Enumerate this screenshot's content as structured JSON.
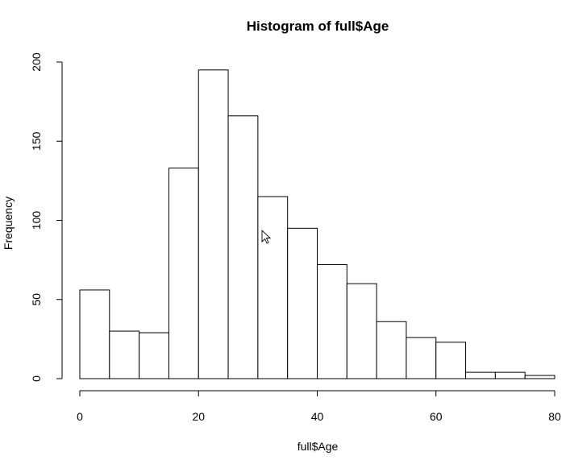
{
  "chart_data": {
    "type": "bar",
    "title": "Histogram of full$Age",
    "xlabel": "full$Age",
    "ylabel": "Frequency",
    "bin_edges": [
      0,
      5,
      10,
      15,
      20,
      25,
      30,
      35,
      40,
      45,
      50,
      55,
      60,
      65,
      70,
      75,
      80
    ],
    "values": [
      56,
      30,
      29,
      133,
      195,
      166,
      115,
      95,
      72,
      60,
      36,
      26,
      23,
      4,
      4,
      2
    ],
    "xlim": [
      0,
      80
    ],
    "ylim": [
      0,
      200
    ],
    "x_ticks": [
      0,
      20,
      40,
      60,
      80
    ],
    "y_ticks": [
      0,
      50,
      100,
      150,
      200
    ],
    "grid": false,
    "colors": {
      "bar_fill": "#ffffff",
      "bar_stroke": "#000000"
    }
  },
  "cursor": {
    "icon": "arrow-cursor-icon"
  }
}
